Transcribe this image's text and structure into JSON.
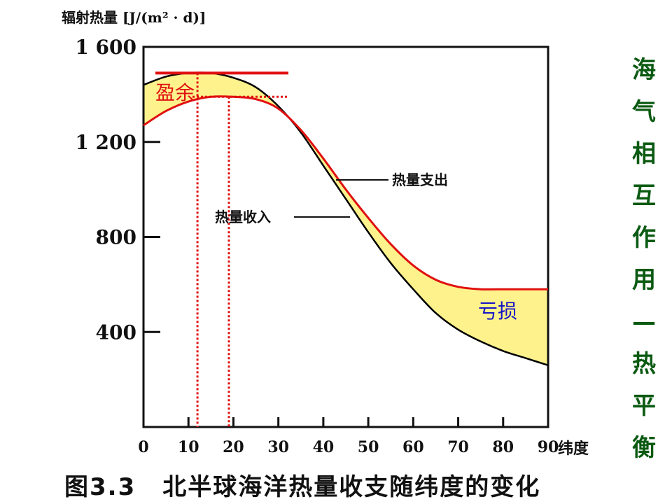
{
  "colors": {
    "surplus_band": "#fdf28c",
    "income_line": "#000000",
    "expense_line": "#e01010",
    "surplus_marker": "#e01010",
    "loss_text": "#1515c8",
    "side_title": "#0b5a12"
  },
  "chart_data": {
    "type": "area",
    "title": "北半球海洋热量收支随纬度的变化",
    "figure_number": "图3.3",
    "ylabel": "辐射热量 [J/(m² · d)]",
    "xlabel": "纬度",
    "xlim": [
      0,
      90
    ],
    "ylim": [
      0,
      1600
    ],
    "x_ticks": [
      0,
      10,
      20,
      30,
      40,
      50,
      60,
      70,
      80,
      90
    ],
    "x_tick_labels": [
      "0",
      "10",
      "20",
      "30",
      "40",
      "50",
      "60",
      "70",
      "80",
      "90"
    ],
    "y_ticks": [
      400,
      800,
      1200,
      1600
    ],
    "y_tick_labels": [
      "400",
      "800",
      "1 200",
      "1 600"
    ],
    "grid": false,
    "series": [
      {
        "name": "热量收入",
        "x": [
          0,
          5,
          10,
          15,
          20,
          25,
          30,
          35,
          40,
          45,
          50,
          55,
          60,
          65,
          70,
          75,
          80,
          85,
          90
        ],
        "values": [
          1440,
          1475,
          1490,
          1490,
          1470,
          1430,
          1350,
          1240,
          1100,
          960,
          820,
          690,
          580,
          480,
          410,
          360,
          320,
          290,
          260
        ]
      },
      {
        "name": "热量支出",
        "x": [
          0,
          5,
          10,
          15,
          20,
          25,
          30,
          35,
          40,
          45,
          50,
          55,
          60,
          65,
          70,
          75,
          80,
          85,
          90
        ],
        "values": [
          1270,
          1330,
          1370,
          1390,
          1390,
          1380,
          1340,
          1250,
          1130,
          1000,
          880,
          770,
          680,
          620,
          590,
          580,
          580,
          580,
          580
        ]
      }
    ],
    "annotations": {
      "surplus": "盈余",
      "loss": "亏损",
      "expense_label": "热量支出",
      "income_label": "热量收入",
      "surplus_top_value": 1490,
      "surplus_bottom_value": 1390,
      "guide_lat_1": 12,
      "guide_lat_2": 19
    }
  },
  "side_title": [
    "海",
    "气",
    "相",
    "互",
    "作",
    "用",
    "—",
    "热",
    "平",
    "衡"
  ]
}
